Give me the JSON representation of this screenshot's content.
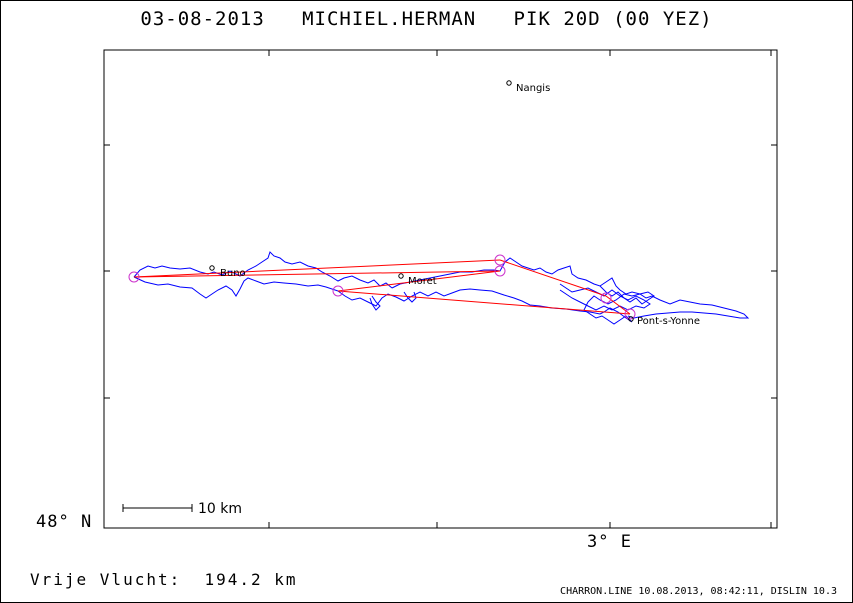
{
  "title": "03-08-2013   MICHIEL.HERMAN   PIK 20D (00 YEZ)",
  "axes": {
    "lat_label": "48° N",
    "lon_label": "3° E"
  },
  "scale_bar": {
    "label": "10 km"
  },
  "places": [
    {
      "name": "Nangis"
    },
    {
      "name": "Buno"
    },
    {
      "name": "Moret"
    },
    {
      "name": "Pont-s-Yonne"
    }
  ],
  "footer": {
    "distance": "Vrije Vlucht:  194.2 km",
    "credit": "CHARRON.LINE 10.08.2013, 08:42:11, DISLIN 10.3"
  },
  "colors": {
    "track": "#0000ff",
    "task_line": "#ff0000",
    "turnpoint": "#cc33cc",
    "frame": "#000000"
  }
}
